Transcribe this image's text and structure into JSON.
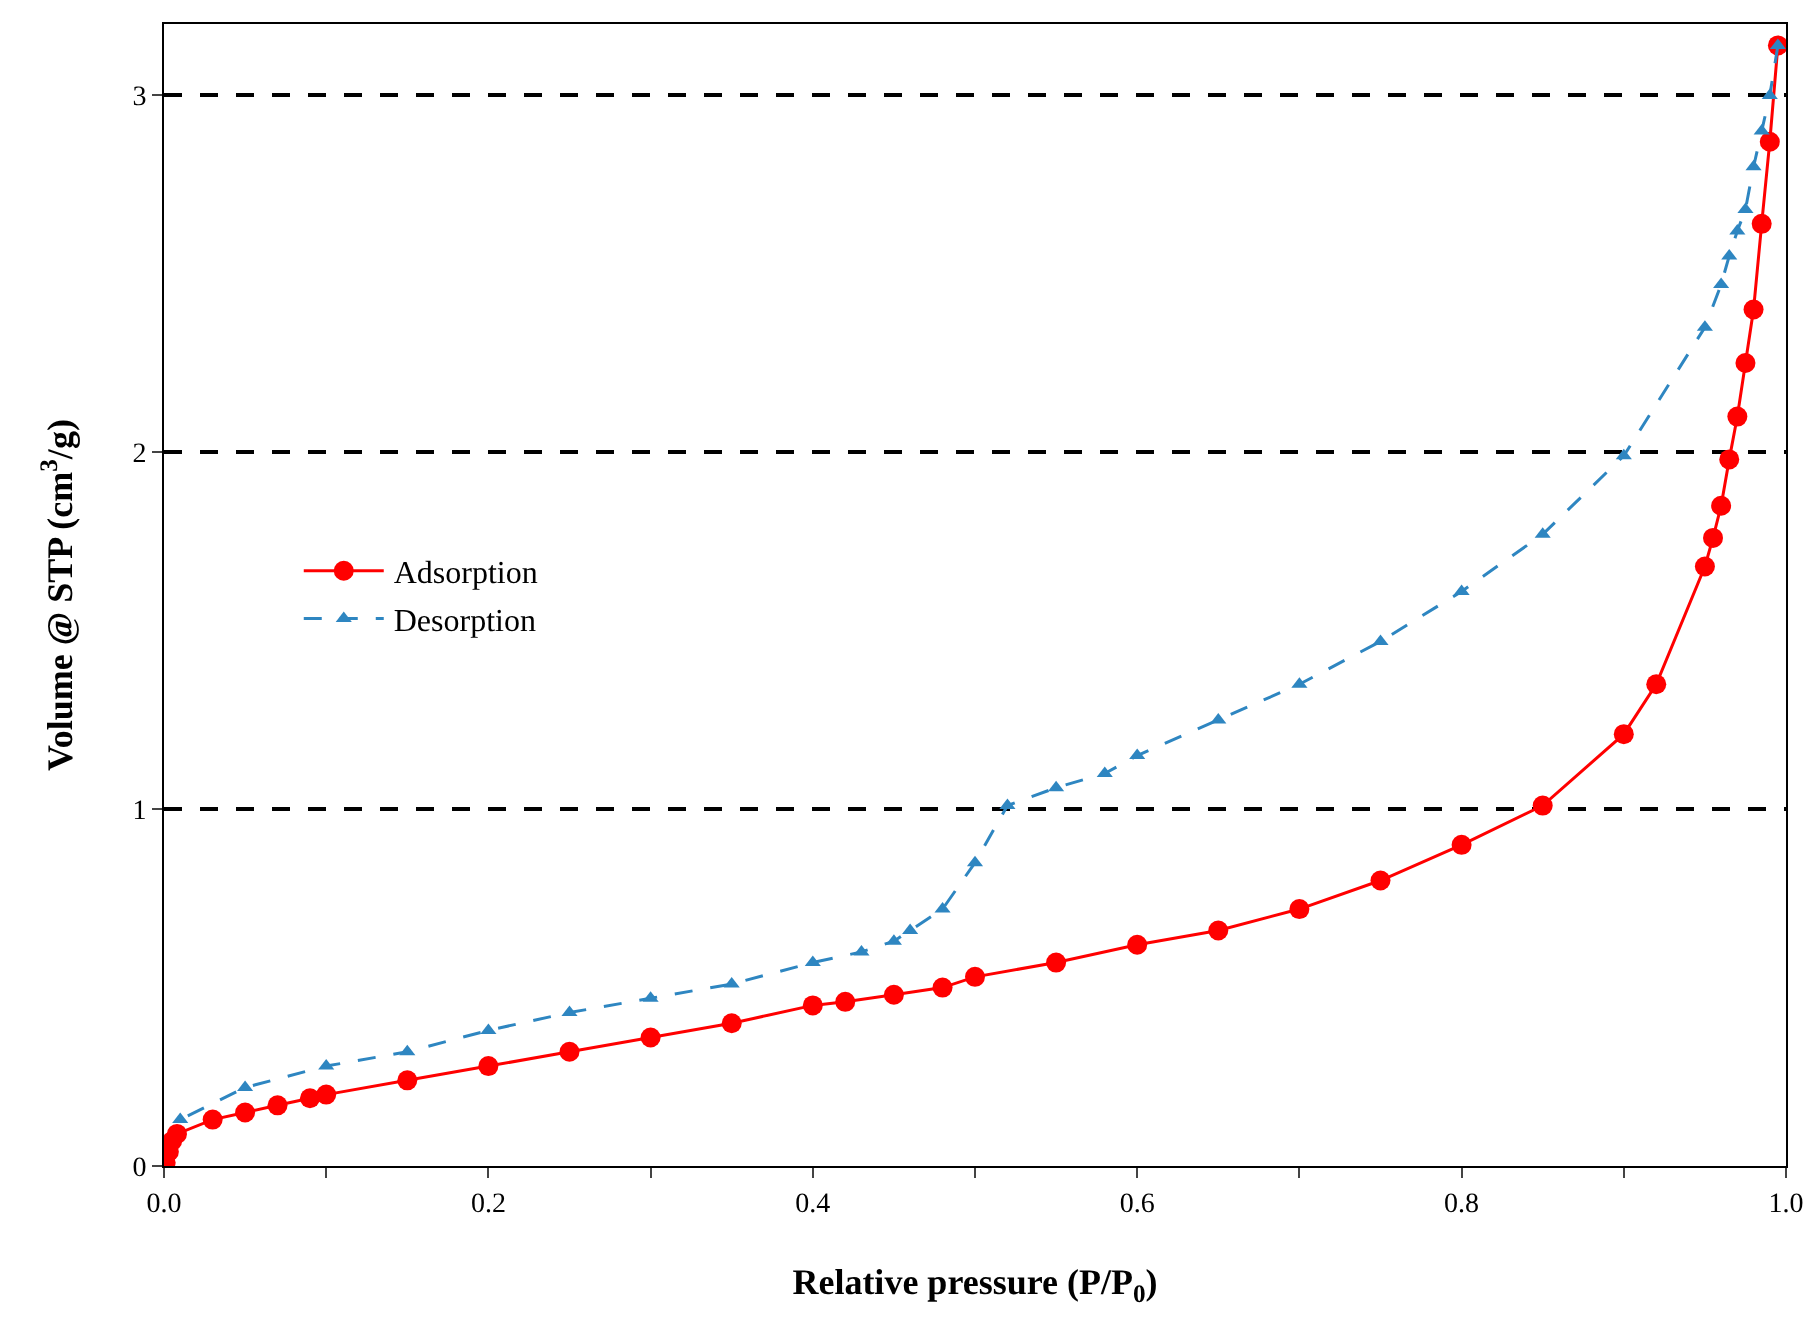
{
  "chart_data": {
    "type": "line",
    "xlabel": "Relative pressure (P/P$_{0}$)",
    "ylabel": "Volume @ STP (cm$^{3}$/g)",
    "xlim": [
      0,
      1
    ],
    "ylim": [
      0,
      3.2
    ],
    "xticks": [
      {
        "value": 0,
        "label": "0.0"
      },
      {
        "value": 0.1,
        "label": null
      },
      {
        "value": 0.2,
        "label": "0.2"
      },
      {
        "value": 0.3,
        "label": null
      },
      {
        "value": 0.4,
        "label": "0.4"
      },
      {
        "value": 0.5,
        "label": null
      },
      {
        "value": 0.6,
        "label": "0.6"
      },
      {
        "value": 0.7,
        "label": null
      },
      {
        "value": 0.8,
        "label": "0.8"
      },
      {
        "value": 0.9,
        "label": null
      },
      {
        "value": 1,
        "label": "1.0"
      }
    ],
    "yticks": [
      0,
      1,
      2,
      3
    ],
    "grid": "y",
    "legend": "left",
    "series": [
      {
        "name": "Adsorption",
        "color": "#ff0000",
        "marker": "circle",
        "line_style": "solid",
        "x": [
          0.001,
          0.003,
          0.005,
          0.008,
          0.03,
          0.05,
          0.07,
          0.09,
          0.1,
          0.15,
          0.2,
          0.25,
          0.3,
          0.35,
          0.4,
          0.42,
          0.45,
          0.48,
          0.5,
          0.55,
          0.6,
          0.65,
          0.7,
          0.75,
          0.8,
          0.85,
          0.9,
          0.92,
          0.95,
          0.955,
          0.96,
          0.965,
          0.97,
          0.975,
          0.98,
          0.985,
          0.99,
          0.995
        ],
        "values": [
          0.01,
          0.04,
          0.07,
          0.09,
          0.13,
          0.15,
          0.17,
          0.19,
          0.2,
          0.24,
          0.28,
          0.32,
          0.36,
          0.4,
          0.45,
          0.46,
          0.48,
          0.5,
          0.53,
          0.57,
          0.62,
          0.66,
          0.72,
          0.8,
          0.9,
          1.01,
          1.21,
          1.35,
          1.68,
          1.76,
          1.85,
          1.98,
          2.1,
          2.25,
          2.4,
          2.64,
          2.87,
          3.14
        ]
      },
      {
        "name": "Desorption",
        "color": "#2e86c1",
        "marker": "triangle",
        "line_style": "dashed",
        "x": [
          0.995,
          0.99,
          0.985,
          0.98,
          0.975,
          0.97,
          0.965,
          0.96,
          0.95,
          0.9,
          0.85,
          0.8,
          0.75,
          0.7,
          0.65,
          0.6,
          0.58,
          0.55,
          0.52,
          0.5,
          0.48,
          0.46,
          0.45,
          0.43,
          0.4,
          0.35,
          0.3,
          0.25,
          0.2,
          0.15,
          0.1,
          0.05,
          0.01
        ],
        "values": [
          3.14,
          3.0,
          2.9,
          2.8,
          2.68,
          2.62,
          2.55,
          2.47,
          2.35,
          1.99,
          1.77,
          1.61,
          1.47,
          1.35,
          1.25,
          1.15,
          1.1,
          1.06,
          1.01,
          0.85,
          0.72,
          0.66,
          0.63,
          0.6,
          0.57,
          0.51,
          0.47,
          0.43,
          0.38,
          0.32,
          0.28,
          0.22,
          0.13
        ]
      }
    ]
  }
}
